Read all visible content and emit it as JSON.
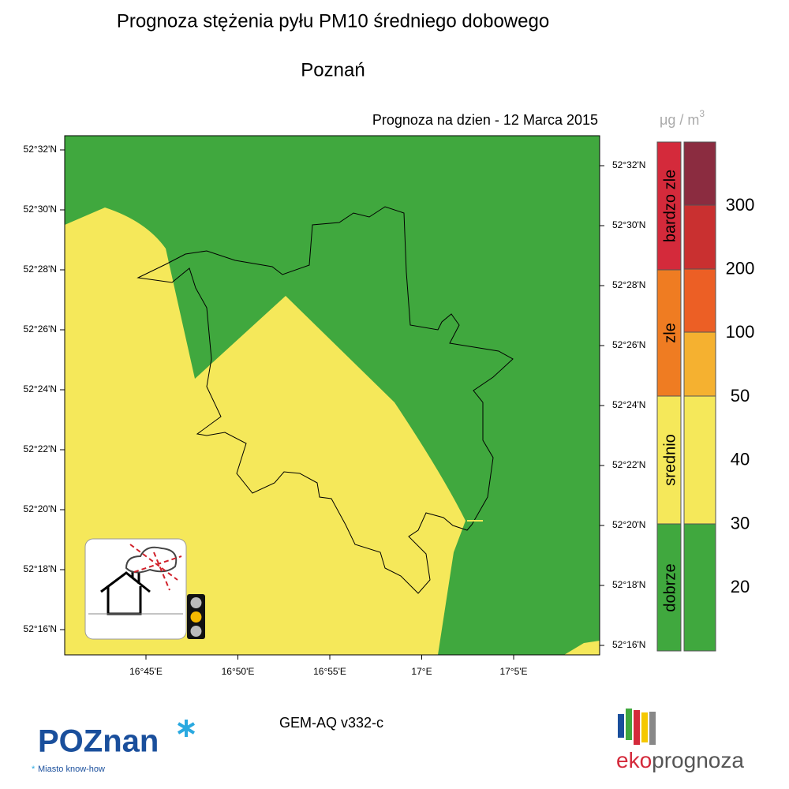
{
  "title": "Prognoza stężenia pyłu PM10 średniego dobowego",
  "subtitle": "Poznań",
  "date_label": "Prognoza na dzien -  12 Marca 2015",
  "unit": {
    "base": "μg / m",
    "exp": "3"
  },
  "lat_labels_left": [
    "52°32'N",
    "52°30'N",
    "52°28'N",
    "52°26'N",
    "52°24'N",
    "52°22'N",
    "52°20'N",
    "52°18'N",
    "52°16'N"
  ],
  "lat_labels_right": [
    "52°32'N",
    "52°30'N",
    "52°28'N",
    "52°26'N",
    "52°24'N",
    "52°22'N",
    "52°20'N",
    "52°18'N",
    "52°16'N"
  ],
  "lon_labels": [
    "16°45'E",
    "16°50'E",
    "16°55'E",
    "17°E",
    "17°5'E"
  ],
  "legend": {
    "categories": [
      "bardzo zle",
      "zle",
      "srednio",
      "dobrze"
    ],
    "thresholds": [
      300,
      200,
      100,
      50,
      40,
      30,
      20
    ]
  },
  "model": "GEM-AQ v332-c",
  "logos": {
    "poznan": "POZnan",
    "poznan_tagline": "Miasto know-how",
    "eko": "eko",
    "prognoza": "prognoza"
  }
}
